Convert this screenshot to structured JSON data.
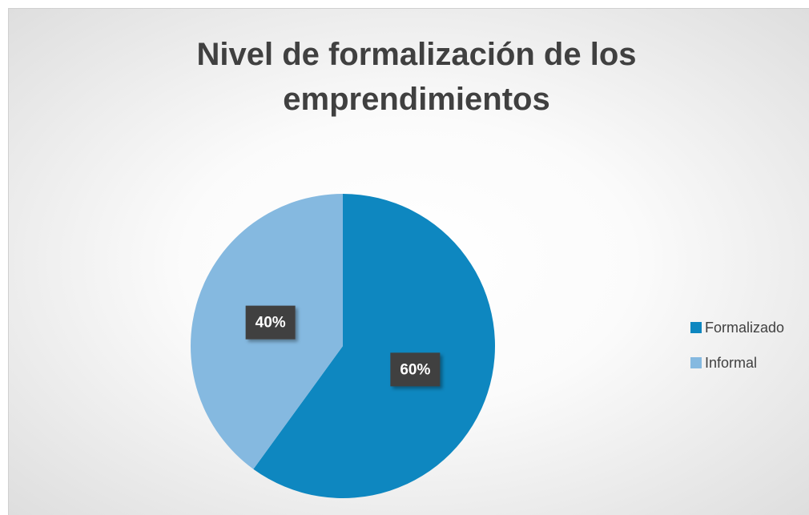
{
  "chart_data": {
    "type": "pie",
    "title": "Nivel de formalización de los emprendimientos",
    "categories": [
      "Formalizado",
      "Informal"
    ],
    "values": [
      60,
      40
    ],
    "value_labels": [
      "60%",
      "40%"
    ],
    "colors": [
      "#0e87c0",
      "#85b9e0"
    ],
    "legend": "right"
  }
}
